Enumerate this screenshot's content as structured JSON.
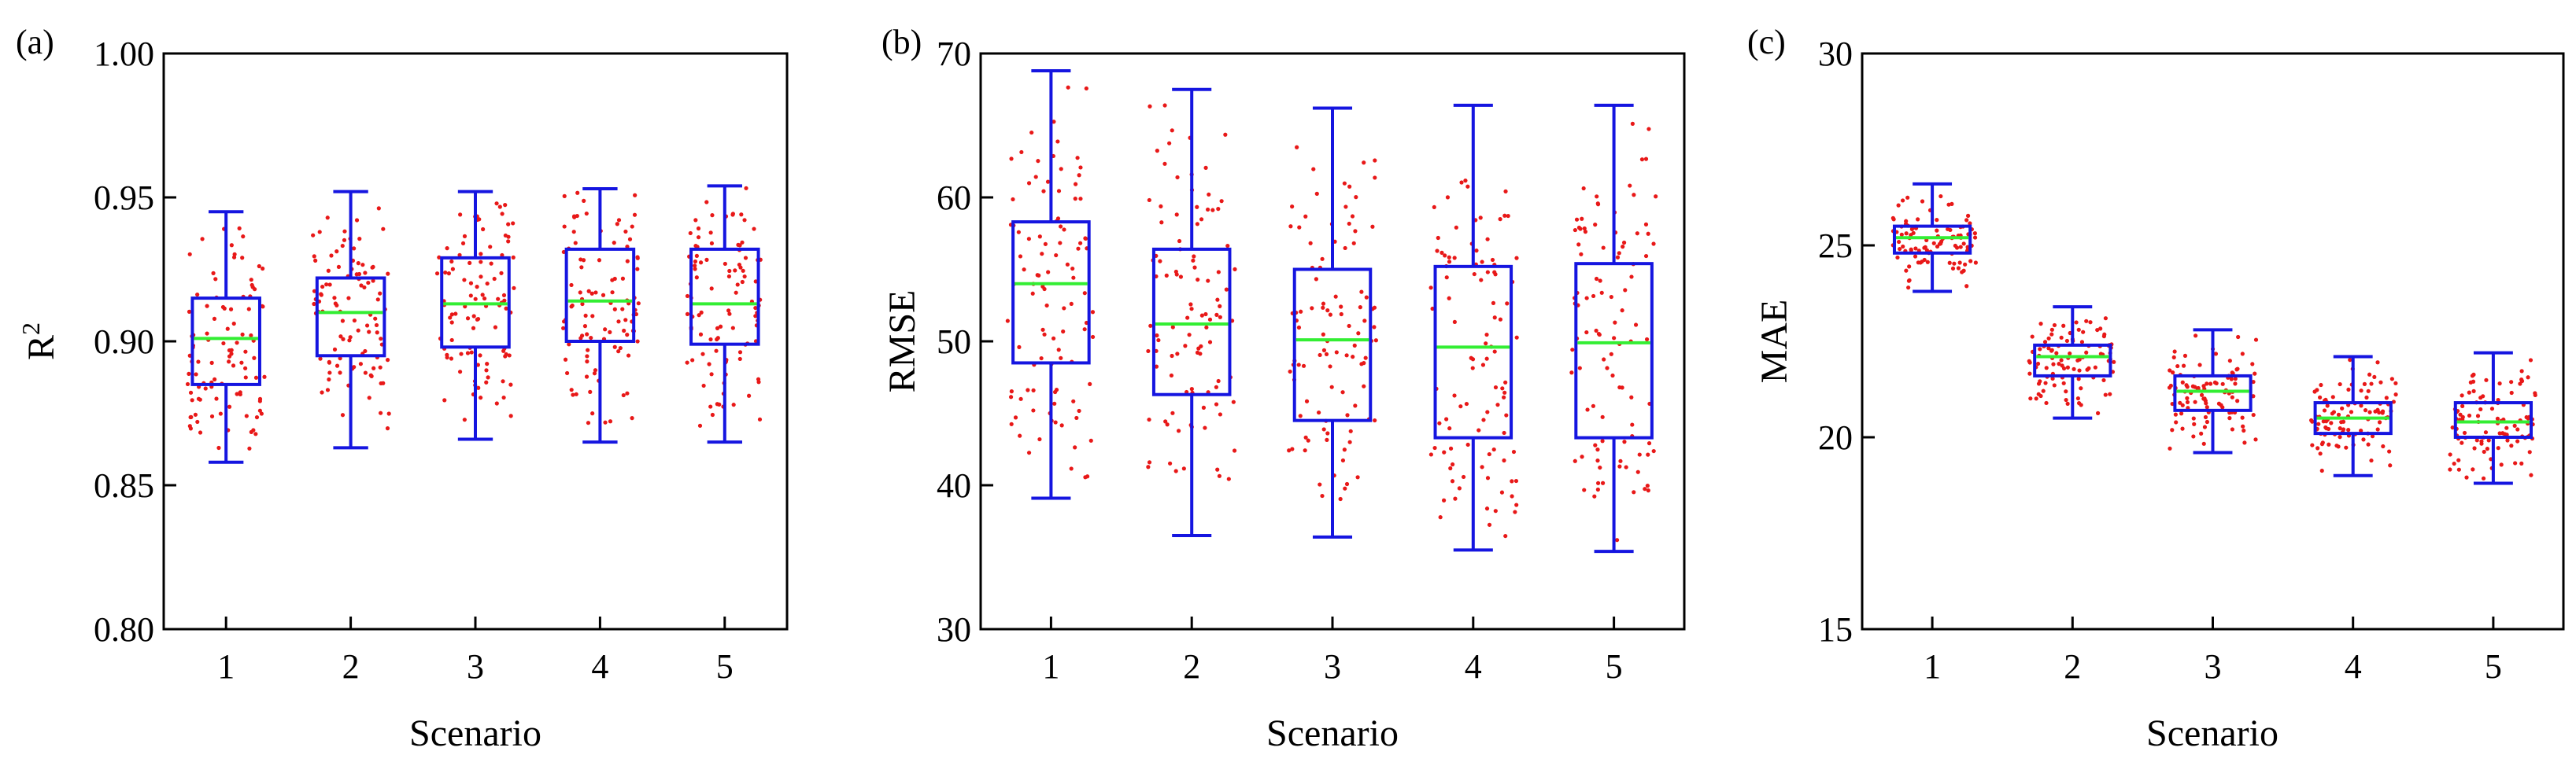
{
  "chart_data": [
    {
      "type": "box",
      "panel_label": "(a)",
      "ylabel_base": "R",
      "ylabel_sup": "2",
      "xlabel": "",
      "categories": [
        "1",
        "2",
        "3",
        "4",
        "5"
      ],
      "ylim": [
        0.8,
        1.0
      ],
      "yticks": [
        0.8,
        0.85,
        0.9,
        0.95,
        1.0
      ],
      "ytick_labels": [
        "0.80",
        "0.85",
        "0.90",
        "0.95",
        "1.00"
      ],
      "boxes": [
        {
          "min": 0.858,
          "q1": 0.885,
          "median": 0.901,
          "q3": 0.915,
          "max": 0.945
        },
        {
          "min": 0.863,
          "q1": 0.895,
          "median": 0.91,
          "q3": 0.922,
          "max": 0.952
        },
        {
          "min": 0.866,
          "q1": 0.898,
          "median": 0.913,
          "q3": 0.929,
          "max": 0.952
        },
        {
          "min": 0.865,
          "q1": 0.9,
          "median": 0.914,
          "q3": 0.932,
          "max": 0.953
        },
        {
          "min": 0.865,
          "q1": 0.899,
          "median": 0.913,
          "q3": 0.932,
          "max": 0.954
        }
      ]
    },
    {
      "type": "box",
      "panel_label": "(b)",
      "ylabel_base": "RMSE",
      "ylabel_sup": "",
      "xlabel": "",
      "categories": [
        "1",
        "2",
        "3",
        "4",
        "5"
      ],
      "ylim": [
        30,
        70
      ],
      "yticks": [
        30,
        40,
        50,
        60,
        70
      ],
      "ytick_labels": [
        "30",
        "40",
        "50",
        "60",
        "70"
      ],
      "boxes": [
        {
          "min": 39.1,
          "q1": 48.5,
          "median": 54.0,
          "q3": 58.3,
          "max": 68.8
        },
        {
          "min": 36.5,
          "q1": 46.3,
          "median": 51.2,
          "q3": 56.4,
          "max": 67.5
        },
        {
          "min": 36.4,
          "q1": 44.5,
          "median": 50.1,
          "q3": 55.0,
          "max": 66.2
        },
        {
          "min": 35.5,
          "q1": 43.3,
          "median": 49.6,
          "q3": 55.2,
          "max": 66.4
        },
        {
          "min": 35.4,
          "q1": 43.3,
          "median": 49.9,
          "q3": 55.4,
          "max": 66.4
        }
      ]
    },
    {
      "type": "box",
      "panel_label": "(c)",
      "ylabel_base": "MAE",
      "ylabel_sup": "",
      "xlabel": "Scenario",
      "categories": [
        "1",
        "2",
        "3",
        "4",
        "5"
      ],
      "ylim": [
        15,
        30
      ],
      "yticks": [
        15,
        20,
        25,
        30
      ],
      "ytick_labels": [
        "15",
        "20",
        "25",
        "30"
      ],
      "boxes": [
        {
          "min": 23.8,
          "q1": 24.8,
          "median": 25.2,
          "q3": 25.5,
          "max": 26.6
        },
        {
          "min": 20.5,
          "q1": 21.6,
          "median": 22.1,
          "q3": 22.4,
          "max": 23.4
        },
        {
          "min": 19.6,
          "q1": 20.7,
          "median": 21.2,
          "q3": 21.6,
          "max": 22.8
        },
        {
          "min": 19.0,
          "q1": 20.1,
          "median": 20.5,
          "q3": 20.9,
          "max": 22.1
        },
        {
          "min": 18.8,
          "q1": 20.0,
          "median": 20.4,
          "q3": 20.9,
          "max": 22.2
        }
      ]
    }
  ],
  "x_axis_titles": [
    "Scenario",
    "Scenario",
    "Scenario"
  ],
  "colors": {
    "box": "#1515e0",
    "median": "#33ee33",
    "points": "#e81818",
    "axis": "#000000"
  }
}
